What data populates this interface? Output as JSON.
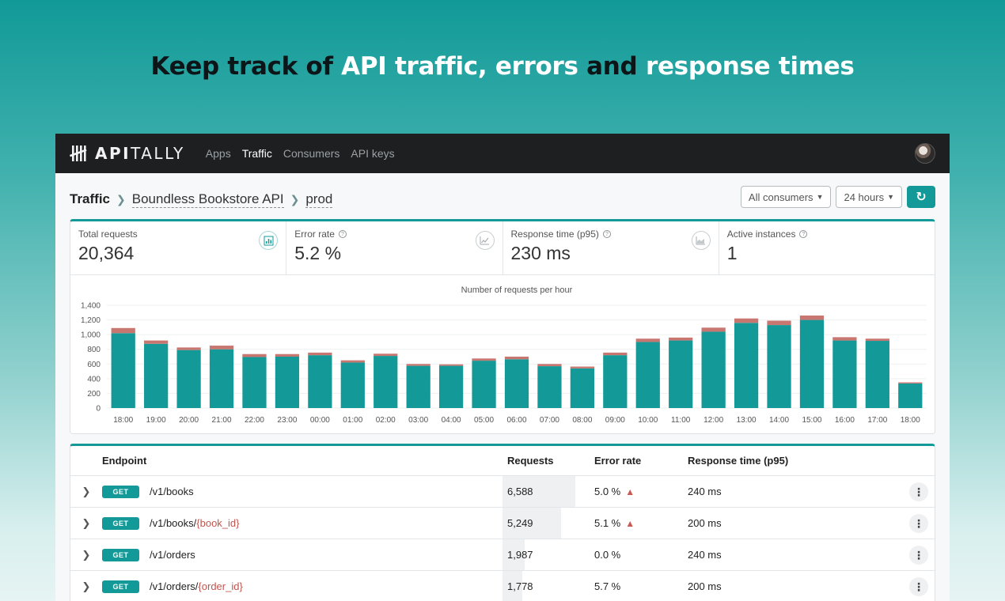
{
  "hero": {
    "parts": [
      {
        "text": "Keep track of ",
        "tone": "dark"
      },
      {
        "text": "API traffic, errors ",
        "tone": "light"
      },
      {
        "text": "and ",
        "tone": "dark"
      },
      {
        "text": "response times",
        "tone": "light"
      }
    ]
  },
  "nav": {
    "brand_bold": "API",
    "brand_rest": "TALLY",
    "links": [
      {
        "label": "Apps",
        "active": false
      },
      {
        "label": "Traffic",
        "active": true
      },
      {
        "label": "Consumers",
        "active": false
      },
      {
        "label": "API keys",
        "active": false
      }
    ]
  },
  "breadcrumb": {
    "page": "Traffic",
    "app": "Boundless Bookstore API",
    "env": "prod"
  },
  "filters": {
    "consumers": "All consumers",
    "period": "24 hours"
  },
  "metrics": [
    {
      "label": "Total requests",
      "value": "20,364",
      "icon": "bar-chart-icon",
      "info": false
    },
    {
      "label": "Error rate",
      "value": "5.2 %",
      "icon": "line-chart-icon",
      "info": true
    },
    {
      "label": "Response time (p95)",
      "value": "230 ms",
      "icon": "area-chart-icon",
      "info": true
    },
    {
      "label": "Active instances",
      "value": "1",
      "icon": "",
      "info": true
    }
  ],
  "colors": {
    "success": "#139a98",
    "error": "#c77670",
    "accent": "#139a98"
  },
  "chart_data": {
    "type": "bar",
    "stacked": true,
    "title": "Number of requests per hour",
    "categories": [
      "18:00",
      "19:00",
      "20:00",
      "21:00",
      "22:00",
      "23:00",
      "00:00",
      "01:00",
      "02:00",
      "03:00",
      "04:00",
      "05:00",
      "06:00",
      "07:00",
      "08:00",
      "09:00",
      "10:00",
      "11:00",
      "12:00",
      "13:00",
      "14:00",
      "15:00",
      "16:00",
      "17:00",
      "18:00"
    ],
    "series": [
      {
        "values": [
          1020,
          875,
          790,
          800,
          695,
          700,
          720,
          620,
          710,
          575,
          575,
          645,
          665,
          570,
          540,
          720,
          900,
          920,
          1040,
          1160,
          1130,
          1200,
          920,
          915,
          335
        ]
      },
      {
        "values": [
          70,
          45,
          35,
          50,
          40,
          35,
          35,
          30,
          30,
          25,
          20,
          30,
          35,
          30,
          25,
          35,
          45,
          40,
          55,
          60,
          60,
          60,
          45,
          30,
          15
        ]
      }
    ],
    "yticks": [
      "1,400",
      "1,200",
      "1,000",
      "800",
      "600",
      "400",
      "200",
      "0"
    ],
    "ylim": [
      0,
      1400
    ],
    "grid": true
  },
  "table": {
    "headers": {
      "endpoint": "Endpoint",
      "requests": "Requests",
      "error_rate": "Error rate",
      "response_time": "Response time (p95)"
    },
    "rows": [
      {
        "method": "GET",
        "path": "/v1/books",
        "param": "",
        "requests": "6,588",
        "req_share": 1.0,
        "error_rate": "5.0 %",
        "warn": true,
        "response_time": "240 ms"
      },
      {
        "method": "GET",
        "path": "/v1/books/",
        "param": "{book_id}",
        "requests": "5,249",
        "req_share": 0.8,
        "error_rate": "5.1 %",
        "warn": true,
        "response_time": "200 ms"
      },
      {
        "method": "GET",
        "path": "/v1/orders",
        "param": "",
        "requests": "1,987",
        "req_share": 0.3,
        "error_rate": "0.0 %",
        "warn": false,
        "response_time": "240 ms"
      },
      {
        "method": "GET",
        "path": "/v1/orders/",
        "param": "{order_id}",
        "requests": "1,778",
        "req_share": 0.27,
        "error_rate": "5.7 %",
        "warn": false,
        "response_time": "200 ms"
      }
    ]
  }
}
